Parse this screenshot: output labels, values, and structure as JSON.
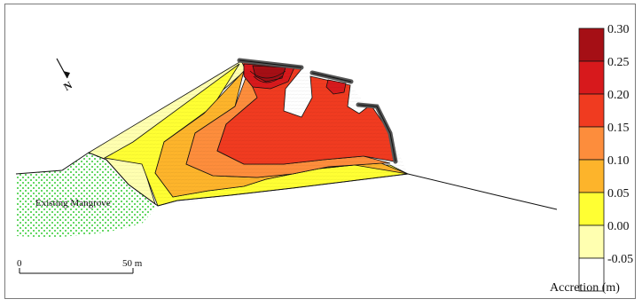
{
  "map": {
    "north_label": "N",
    "mangrove_label": "Existing Mangrove",
    "scale_bar": {
      "start_label": "0",
      "end_label": "50 m"
    }
  },
  "legend": {
    "title": "Accretion (m)",
    "entries": [
      {
        "label": "0.30",
        "color": "#a50f15"
      },
      {
        "label": "0.25",
        "color": "#d7191c"
      },
      {
        "label": "0.20",
        "color": "#f03b20"
      },
      {
        "label": "0.15",
        "color": "#fd8d3c"
      },
      {
        "label": "0.10",
        "color": "#fdb42b"
      },
      {
        "label": "0.05",
        "color": "#ffff33"
      },
      {
        "label": "0.00",
        "color": "#ffffb0"
      },
      {
        "label": "-0.05",
        "color": "#ffffff"
      }
    ]
  },
  "colors": {
    "mangrove_dots": "#33cc33",
    "breakwater": "#555555",
    "outline": "#111111"
  }
}
